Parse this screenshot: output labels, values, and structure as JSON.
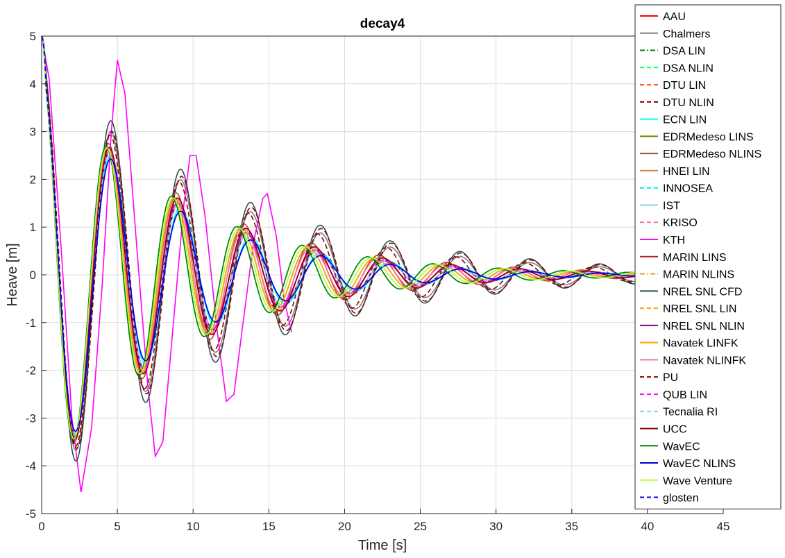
{
  "chart_data": {
    "type": "line",
    "title": "decay4",
    "xlabel": "Time [s]",
    "ylabel": "Heave [m]",
    "xlim": [
      0,
      45
    ],
    "ylim": [
      -5,
      5
    ],
    "xticks": [
      "0",
      "5",
      "10",
      "15",
      "20",
      "25",
      "30",
      "35",
      "40",
      "45"
    ],
    "yticks": [
      "5",
      "4",
      "3",
      "2",
      "1",
      "0",
      "-1",
      "-2",
      "-3",
      "-4",
      "-5"
    ],
    "grid": true,
    "legend_position": "top-right",
    "series": [
      {
        "name": "AAU",
        "color": "#ff0000",
        "dash": "solid",
        "model": {
          "A": 4.4,
          "T": 4.55,
          "z": 0.085,
          "phase": 0,
          "tend": 39.5
        }
      },
      {
        "name": "Chalmers",
        "color": "#808080",
        "dash": "solid",
        "model": {
          "A": 4.5,
          "T": 4.6,
          "z": 0.065,
          "phase": 0,
          "tend": 39.5
        }
      },
      {
        "name": "DSA LIN",
        "color": "#008000",
        "dash": "dashdot",
        "model": {
          "A": 4.4,
          "T": 4.3,
          "z": 0.078,
          "phase": 0,
          "tend": 39.5
        }
      },
      {
        "name": "DSA NLIN",
        "color": "#00ff7f",
        "dash": "dashed",
        "model": {
          "A": 4.4,
          "T": 4.3,
          "z": 0.078,
          "phase": 0,
          "tend": 39.5
        }
      },
      {
        "name": "DTU LIN",
        "color": "#ff4500",
        "dash": "dashed",
        "model": {
          "A": 4.4,
          "T": 4.5,
          "z": 0.085,
          "phase": 0,
          "tend": 39.5
        }
      },
      {
        "name": "DTU NLIN",
        "color": "#8b0000",
        "dash": "dashed",
        "model": {
          "A": 4.4,
          "T": 4.55,
          "z": 0.065,
          "phase": 0,
          "tend": 39.5
        }
      },
      {
        "name": "ECN LIN",
        "color": "#00ffff",
        "dash": "solid",
        "model": {
          "A": 4.4,
          "T": 4.6,
          "z": 0.09,
          "phase": 0,
          "tend": 39.5
        }
      },
      {
        "name": "EDRMedeso LINS",
        "color": "#808000",
        "dash": "solid",
        "model": {
          "A": 4.4,
          "T": 4.4,
          "z": 0.08,
          "phase": 0,
          "tend": 39.5
        }
      },
      {
        "name": "EDRMedeso NLINS",
        "color": "#a0522d",
        "dash": "solid",
        "model": {
          "A": 4.4,
          "T": 4.45,
          "z": 0.075,
          "phase": 0,
          "tend": 39.5
        }
      },
      {
        "name": "HNEI LIN",
        "color": "#cd853f",
        "dash": "solid",
        "model": {
          "A": 4.4,
          "T": 4.4,
          "z": 0.08,
          "phase": 0,
          "tend": 39.5
        }
      },
      {
        "name": "INNOSEA",
        "color": "#00e5ee",
        "dash": "dashed",
        "model": {
          "A": 4.4,
          "T": 4.5,
          "z": 0.085,
          "phase": 0,
          "tend": 39.5
        }
      },
      {
        "name": "IST",
        "color": "#87cefa",
        "dash": "solid",
        "model": {
          "A": 4.4,
          "T": 4.55,
          "z": 0.085,
          "phase": 0,
          "tend": 39.5
        }
      },
      {
        "name": "KRISO",
        "color": "#ff69b4",
        "dash": "dashed",
        "model": {
          "A": 4.4,
          "T": 4.5,
          "z": 0.08,
          "phase": 0,
          "tend": 39.5
        }
      },
      {
        "name": "KTH",
        "color": "#ff00ff",
        "dash": "solid",
        "points": [
          [
            0,
            5
          ],
          [
            0.5,
            4.1
          ],
          [
            1.3,
            0.5
          ],
          [
            2.0,
            -3.0
          ],
          [
            2.6,
            -4.55
          ],
          [
            3.3,
            -3.2
          ],
          [
            4.0,
            -0.2
          ],
          [
            4.6,
            3.0
          ],
          [
            5.0,
            4.5
          ],
          [
            5.5,
            3.8
          ],
          [
            6.3,
            0.5
          ],
          [
            7.0,
            -2.3
          ],
          [
            7.5,
            -3.8
          ],
          [
            8.0,
            -3.5
          ],
          [
            8.7,
            -1.0
          ],
          [
            9.4,
            1.5
          ],
          [
            9.8,
            2.5
          ],
          [
            10.2,
            2.5
          ],
          [
            10.8,
            1.2
          ],
          [
            11.6,
            -1.2
          ],
          [
            12.2,
            -2.65
          ],
          [
            12.7,
            -2.5
          ],
          [
            13.3,
            -1.0
          ],
          [
            14.0,
            0.7
          ],
          [
            14.6,
            1.6
          ],
          [
            14.9,
            1.7
          ],
          [
            15.5,
            0.8
          ],
          [
            16.0,
            -0.5
          ],
          [
            16.5,
            -1.2
          ]
        ]
      },
      {
        "name": "MARIN LINS",
        "color": "#b22222",
        "dash": "solid",
        "model": {
          "A": 4.4,
          "T": 4.5,
          "z": 0.085,
          "phase": 0,
          "tend": 39.5
        }
      },
      {
        "name": "MARIN NLINS",
        "color": "#daa520",
        "dash": "dashdot",
        "model": {
          "A": 4.4,
          "T": 4.45,
          "z": 0.08,
          "phase": 0,
          "tend": 39.5
        }
      },
      {
        "name": "NREL SNL CFD",
        "color": "#2f4f4f",
        "dash": "solid",
        "model": {
          "A": 4.7,
          "T": 4.6,
          "z": 0.06,
          "phase": 0,
          "tend": 39.5
        }
      },
      {
        "name": "NREL SNL LIN",
        "color": "#ffa500",
        "dash": "dashed",
        "model": {
          "A": 4.4,
          "T": 4.5,
          "z": 0.08,
          "phase": 0,
          "tend": 39.5
        }
      },
      {
        "name": "NREL SNL NLIN",
        "color": "#800080",
        "dash": "solid",
        "model": {
          "A": 4.4,
          "T": 4.55,
          "z": 0.085,
          "phase": 0,
          "tend": 39.5
        }
      },
      {
        "name": "Navatek LINFK",
        "color": "#ffa500",
        "dash": "solid",
        "model": {
          "A": 4.4,
          "T": 4.4,
          "z": 0.08,
          "phase": 0,
          "tend": 39.5
        }
      },
      {
        "name": "Navatek NLINFK",
        "color": "#ff69b4",
        "dash": "solid",
        "model": {
          "A": 4.4,
          "T": 4.45,
          "z": 0.08,
          "phase": 0,
          "tend": 39.5
        }
      },
      {
        "name": "PU",
        "color": "#8b0000",
        "dash": "dashed",
        "model": {
          "A": 4.4,
          "T": 4.6,
          "z": 0.06,
          "phase": 0.08,
          "tend": 39.5
        }
      },
      {
        "name": "QUB LIN",
        "color": "#ff00ff",
        "dash": "dashed",
        "model": {
          "A": 4.4,
          "T": 4.5,
          "z": 0.085,
          "phase": 0,
          "tend": 39.5
        }
      },
      {
        "name": "Tecnalia RI",
        "color": "#87ceeb",
        "dash": "dashed",
        "model": {
          "A": 4.4,
          "T": 4.55,
          "z": 0.085,
          "phase": 0,
          "tend": 39.5
        }
      },
      {
        "name": "UCC",
        "color": "#8b0000",
        "dash": "solid",
        "model": {
          "A": 4.4,
          "T": 4.5,
          "z": 0.08,
          "phase": 0,
          "tend": 39.5
        }
      },
      {
        "name": "WavEC",
        "color": "#008000",
        "dash": "solid",
        "model": {
          "A": 4.4,
          "T": 4.3,
          "z": 0.078,
          "phase": 0,
          "tend": 39.5
        }
      },
      {
        "name": "WavEC NLINS",
        "color": "#0000cd",
        "dash": "solid",
        "model": {
          "A": 4.4,
          "T": 4.6,
          "z": 0.095,
          "phase": 0,
          "tend": 39.5
        }
      },
      {
        "name": "Wave Venture",
        "color": "#adff2f",
        "dash": "solid",
        "model": {
          "A": 4.4,
          "T": 4.35,
          "z": 0.08,
          "phase": 0,
          "tend": 39.5
        }
      },
      {
        "name": "glosten",
        "color": "#0000ff",
        "dash": "dashed",
        "model": {
          "A": 4.4,
          "T": 4.6,
          "z": 0.095,
          "phase": 0,
          "tend": 39.5
        }
      }
    ]
  }
}
